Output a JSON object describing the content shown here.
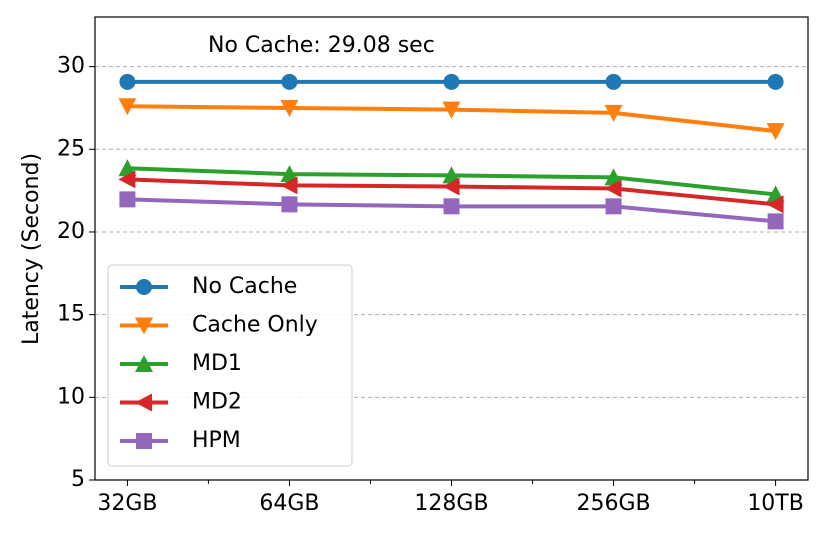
{
  "chart_data": {
    "type": "line",
    "annotation": "No Cache: 29.08 sec",
    "y_label": "Latency (Second)",
    "categories": [
      "32GB",
      "64GB",
      "128GB",
      "256GB",
      "10TB"
    ],
    "series": [
      {
        "name": "No Cache",
        "color": "#1f77b4",
        "marker": "circle",
        "values": [
          29.08,
          29.08,
          29.08,
          29.08,
          29.08
        ]
      },
      {
        "name": "Cache Only",
        "color": "#ff7f0e",
        "marker": "triangle-down",
        "values": [
          27.6,
          27.5,
          27.4,
          27.2,
          26.1
        ]
      },
      {
        "name": "MD1",
        "color": "#2ca02c",
        "marker": "triangle-up",
        "values": [
          23.85,
          23.5,
          23.42,
          23.3,
          22.27
        ]
      },
      {
        "name": "MD2",
        "color": "#d62728",
        "marker": "triangle-left",
        "values": [
          23.18,
          22.82,
          22.75,
          22.63,
          21.67
        ]
      },
      {
        "name": "HPM",
        "color": "#9467bd",
        "marker": "square",
        "values": [
          21.97,
          21.67,
          21.55,
          21.55,
          20.64
        ]
      }
    ],
    "ylim": [
      5,
      33
    ],
    "yticks": [
      5,
      10,
      15,
      20,
      25,
      30
    ],
    "grid": true,
    "legend": "lower left"
  }
}
